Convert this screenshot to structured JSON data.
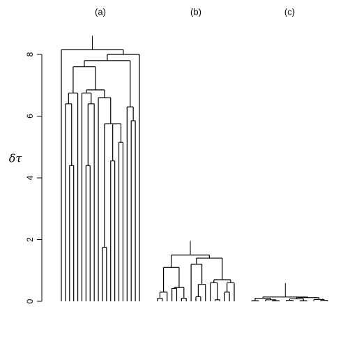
{
  "chart_data": {
    "type": "dendrogram",
    "ylabel": "δτ",
    "ylim": [
      0,
      8
    ],
    "yticks": [
      0,
      2,
      4,
      6,
      8
    ],
    "panels": [
      {
        "title": "(a)",
        "tree": {
          "height": 8.15,
          "children": [
            null,
            {
              "height": 8.0,
              "children": [
                {
                  "height": 7.8,
                  "children": [
                    {
                      "height": 7.6,
                      "children": [
                        {
                          "height": 6.75,
                          "children": [
                            {
                              "height": 6.4,
                              "children": [
                                null,
                                {
                                  "height": 4.4,
                                  "children": [
                                    null,
                                    null
                                  ]
                                }
                              ]
                            },
                            null
                          ]
                        },
                        {
                          "height": 6.85,
                          "children": [
                            {
                              "height": 6.75,
                              "children": [
                                null,
                                {
                                  "height": 6.4,
                                  "children": [
                                    {
                                      "height": 4.4,
                                      "children": [
                                        null,
                                        null
                                      ]
                                    },
                                    null
                                  ]
                                }
                              ]
                            },
                            {
                              "height": 6.6,
                              "children": [
                                null,
                                {
                                  "height": 5.75,
                                  "children": [
                                    {
                                      "height": 1.75,
                                      "children": [
                                        null,
                                        null
                                      ]
                                    },
                                    {
                                      "height": 5.75,
                                      "children": [
                                        {
                                          "height": 4.55,
                                          "children": [
                                            null,
                                            null
                                          ]
                                        },
                                        {
                                          "height": 5.15,
                                          "children": [
                                            null,
                                            null
                                          ]
                                        }
                                      ]
                                    }
                                  ]
                                }
                              ]
                            }
                          ]
                        }
                      ]
                    },
                    {
                      "height": 6.3,
                      "children": [
                        null,
                        {
                          "height": 5.85,
                          "children": [
                            null,
                            null
                          ]
                        }
                      ]
                    }
                  ]
                },
                null
              ]
            }
          ]
        }
      },
      {
        "title": "(b)",
        "tree": {
          "height": 1.5,
          "children": [
            {
              "height": 1.1,
              "children": [
                {
                  "height": 0.3,
                  "children": [
                    {
                      "height": 0.1,
                      "children": [
                        null,
                        null
                      ]
                    },
                    null
                  ]
                },
                {
                  "height": 0.45,
                  "children": [
                    {
                      "height": 0.42,
                      "children": [
                        null,
                        null
                      ]
                    },
                    {
                      "height": 0.1,
                      "children": [
                        null,
                        null
                      ]
                    }
                  ]
                }
              ]
            },
            {
              "height": 1.4,
              "children": [
                {
                  "height": 1.2,
                  "children": [
                    null,
                    {
                      "height": 0.55,
                      "children": [
                        {
                          "height": 0.15,
                          "children": [
                            null,
                            null
                          ]
                        },
                        null
                      ]
                    }
                  ]
                },
                {
                  "height": 0.7,
                  "children": [
                    {
                      "height": 0.6,
                      "children": [
                        null,
                        {
                          "height": 0.05,
                          "children": [
                            null,
                            null
                          ]
                        }
                      ]
                    },
                    {
                      "height": 0.6,
                      "children": [
                        {
                          "height": 0.3,
                          "children": [
                            null,
                            null
                          ]
                        },
                        null
                      ]
                    }
                  ]
                }
              ]
            }
          ]
        }
      },
      {
        "title": "(c)",
        "tree": {
          "height": 0.14,
          "children": [
            {
              "height": 0.1,
              "children": [
                {
                  "height": 0.02,
                  "children": [
                    null,
                    null
                  ]
                },
                {
                  "height": 0.05,
                  "children": [
                    null,
                    {
                      "height": 0.02,
                      "children": [
                        null,
                        null
                      ]
                    }
                  ]
                }
              ]
            },
            {
              "height": 0.12,
              "children": [
                {
                  "height": 0.08,
                  "children": [
                    {
                      "height": 0.03,
                      "children": [
                        null,
                        null
                      ]
                    },
                    {
                      "height": 0.02,
                      "children": [
                        null,
                        null
                      ]
                    }
                  ]
                },
                {
                  "height": 0.06,
                  "children": [
                    null,
                    {
                      "height": 0.03,
                      "children": [
                        null,
                        null
                      ]
                    }
                  ]
                }
              ]
            }
          ]
        }
      }
    ]
  }
}
